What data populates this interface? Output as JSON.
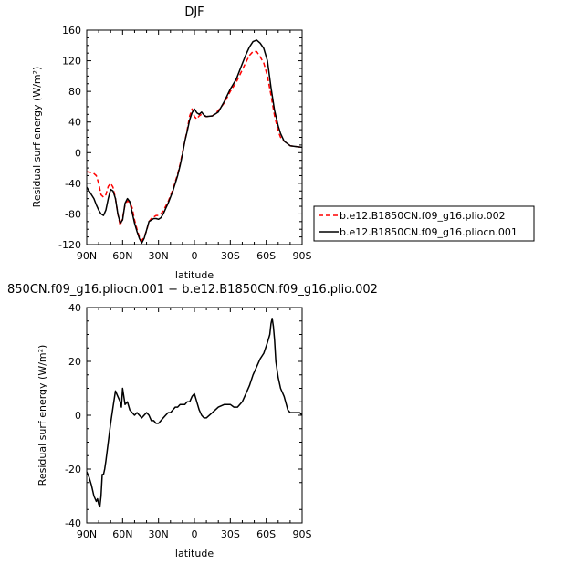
{
  "chart_data": [
    {
      "type": "line",
      "title": "DJF",
      "xlabel": "latitude",
      "ylabel": "Residual surf energy (W/m²)",
      "x_ticks": [
        "90N",
        "60N",
        "30N",
        "0",
        "30S",
        "60S",
        "90S"
      ],
      "x_tick_values": [
        90,
        60,
        30,
        0,
        -30,
        -60,
        -90
      ],
      "xlim": [
        90,
        -90
      ],
      "ylim": [
        -120,
        160
      ],
      "y_ticks": [
        -120,
        -80,
        -40,
        0,
        40,
        80,
        120,
        160
      ],
      "grid": false,
      "legend_position": "outside-right",
      "series": [
        {
          "name": "b.e12.B1850CN.f09_g16.plio.002",
          "color": "#ff0000",
          "dash": "dashed",
          "x": [
            90,
            85,
            82,
            80,
            78,
            76,
            74,
            72,
            70,
            68,
            66,
            64,
            62,
            60,
            58,
            56,
            54,
            52,
            50,
            48,
            46,
            44,
            42,
            40,
            38,
            36,
            34,
            32,
            30,
            28,
            26,
            24,
            22,
            20,
            18,
            16,
            14,
            12,
            10,
            8,
            6,
            4,
            2,
            0,
            -2,
            -4,
            -6,
            -8,
            -10,
            -15,
            -20,
            -25,
            -30,
            -35,
            -40,
            -43,
            -46,
            -49,
            -52,
            -55,
            -58,
            -61,
            -64,
            -67,
            -70,
            -72,
            -75,
            -80,
            -85,
            -90
          ],
          "y": [
            -25,
            -26,
            -30,
            -40,
            -55,
            -58,
            -55,
            -44,
            -40,
            -45,
            -60,
            -80,
            -95,
            -85,
            -68,
            -63,
            -65,
            -72,
            -88,
            -100,
            -110,
            -115,
            -110,
            -102,
            -90,
            -86,
            -84,
            -82,
            -82,
            -80,
            -76,
            -70,
            -64,
            -56,
            -48,
            -38,
            -28,
            -15,
            0,
            15,
            30,
            48,
            57,
            47,
            44,
            48,
            50,
            48,
            47,
            48,
            55,
            65,
            80,
            92,
            108,
            118,
            127,
            132,
            132,
            125,
            117,
            100,
            75,
            48,
            28,
            20,
            15,
            9,
            8,
            7
          ]
        },
        {
          "name": "b.e12.B1850CN.f09_g16.pliocn.001",
          "color": "#000000",
          "dash": "solid",
          "x": [
            90,
            88,
            86,
            84,
            82,
            80,
            78,
            76,
            74,
            72,
            70,
            68,
            66,
            64,
            62,
            60,
            58,
            56,
            54,
            52,
            50,
            48,
            46,
            44,
            42,
            40,
            38,
            36,
            34,
            32,
            30,
            28,
            26,
            24,
            22,
            20,
            18,
            16,
            14,
            12,
            10,
            8,
            6,
            4,
            2,
            0,
            -2,
            -4,
            -6,
            -8,
            -10,
            -15,
            -20,
            -25,
            -30,
            -35,
            -40,
            -43,
            -46,
            -49,
            -52,
            -55,
            -58,
            -61,
            -64,
            -67,
            -70,
            -72,
            -75,
            -80,
            -85,
            -90
          ],
          "y": [
            -45,
            -50,
            -55,
            -60,
            -68,
            -75,
            -80,
            -82,
            -75,
            -60,
            -48,
            -50,
            -60,
            -80,
            -92,
            -88,
            -66,
            -60,
            -64,
            -78,
            -92,
            -103,
            -112,
            -118,
            -112,
            -101,
            -90,
            -88,
            -86,
            -86,
            -87,
            -85,
            -80,
            -73,
            -66,
            -58,
            -50,
            -40,
            -30,
            -17,
            -2,
            15,
            28,
            43,
            52,
            57,
            52,
            50,
            53,
            49,
            47,
            48,
            53,
            67,
            83,
            96,
            116,
            128,
            138,
            145,
            147,
            143,
            136,
            120,
            85,
            55,
            35,
            25,
            15,
            9,
            8,
            7
          ]
        }
      ]
    },
    {
      "type": "line",
      "title": "850CN.f09_g16.pliocn.001 − b.e12.B1850CN.f09_g16.plio.002",
      "xlabel": "latitude",
      "ylabel": "Residual surf energy (W/m²)",
      "x_ticks": [
        "90N",
        "60N",
        "30N",
        "0",
        "30S",
        "60S",
        "90S"
      ],
      "x_tick_values": [
        90,
        60,
        30,
        0,
        -30,
        -60,
        -90
      ],
      "xlim": [
        90,
        -90
      ],
      "ylim": [
        -40,
        40
      ],
      "y_ticks": [
        -40,
        -20,
        0,
        20,
        40
      ],
      "grid": false,
      "series": [
        {
          "color": "#000000",
          "dash": "solid",
          "x": [
            90,
            88,
            86,
            84,
            82,
            81,
            80,
            79,
            78,
            77,
            76,
            75,
            74,
            72,
            70,
            68,
            66,
            64,
            62,
            61,
            60,
            58,
            56,
            54,
            52,
            50,
            48,
            46,
            44,
            42,
            40,
            38,
            36,
            34,
            32,
            30,
            28,
            26,
            24,
            22,
            20,
            18,
            16,
            14,
            12,
            10,
            8,
            6,
            4,
            2,
            0,
            -2,
            -4,
            -6,
            -8,
            -10,
            -15,
            -20,
            -25,
            -30,
            -33,
            -36,
            -40,
            -43,
            -46,
            -49,
            -52,
            -55,
            -58,
            -61,
            -63,
            -64,
            -65,
            -66,
            -67,
            -68,
            -70,
            -72,
            -75,
            -78,
            -80,
            -85,
            -88,
            -90
          ],
          "y": [
            -21,
            -23,
            -26,
            -30,
            -32,
            -31,
            -33,
            -34,
            -30,
            -22,
            -22,
            -20,
            -17,
            -10,
            -3,
            3,
            9,
            7,
            5,
            3,
            10,
            4,
            5,
            2,
            1,
            0,
            1,
            0,
            -1,
            0,
            1,
            0,
            -2,
            -2,
            -3,
            -3,
            -2,
            -1,
            0,
            1,
            1,
            2,
            3,
            3,
            4,
            4,
            4,
            5,
            5,
            7,
            8,
            5,
            2,
            0,
            -1,
            -1,
            1,
            3,
            4,
            4,
            3,
            3,
            5,
            8,
            11,
            15,
            18,
            21,
            23,
            27,
            30,
            34,
            36,
            33,
            28,
            20,
            14,
            10,
            7,
            2,
            1,
            1,
            1,
            0
          ]
        }
      ]
    }
  ]
}
